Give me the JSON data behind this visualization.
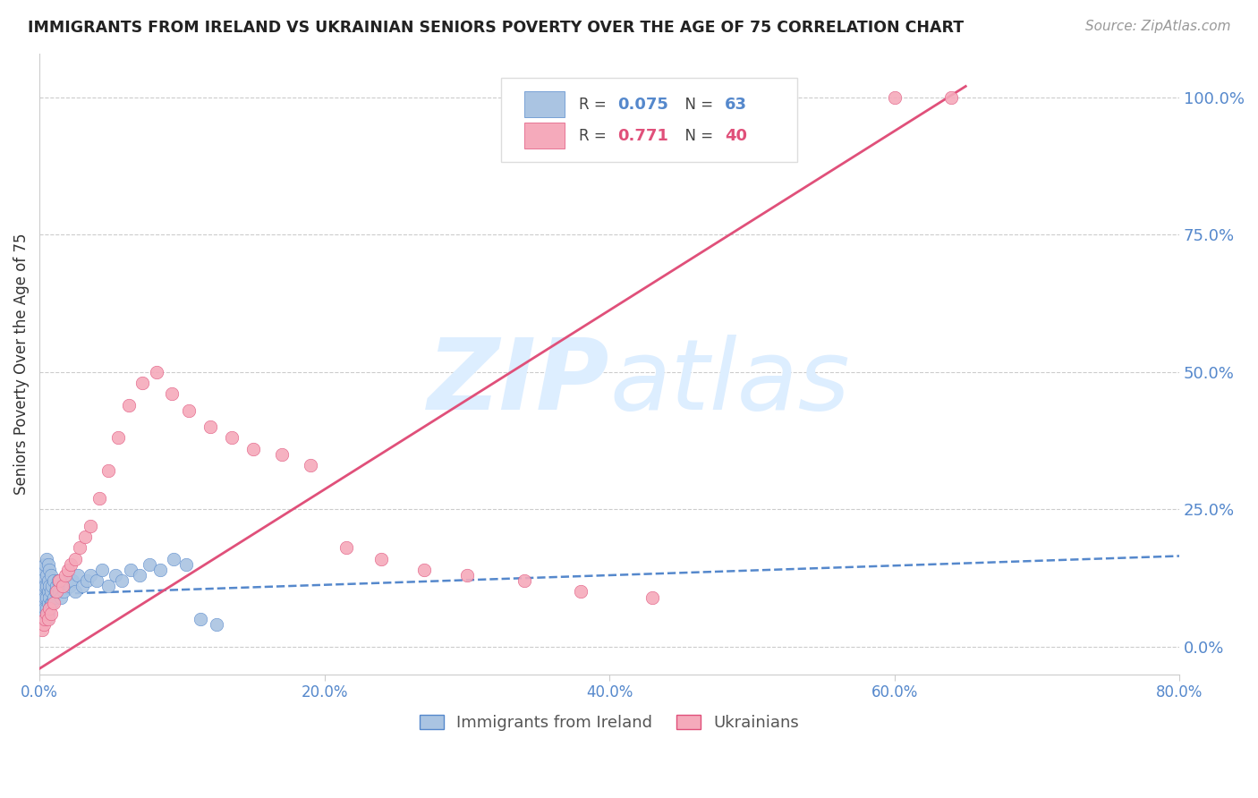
{
  "title": "IMMIGRANTS FROM IRELAND VS UKRAINIAN SENIORS POVERTY OVER THE AGE OF 75 CORRELATION CHART",
  "source": "Source: ZipAtlas.com",
  "ylabel": "Seniors Poverty Over the Age of 75",
  "xlim": [
    0.0,
    0.8
  ],
  "ylim": [
    -0.05,
    1.08
  ],
  "ireland_R": 0.075,
  "ireland_N": 63,
  "ukraine_R": 0.771,
  "ukraine_N": 40,
  "ireland_color": "#aac4e2",
  "ukraine_color": "#f5aabb",
  "ireland_line_color": "#5588cc",
  "ukraine_line_color": "#e0507a",
  "watermark_zip": "ZIP",
  "watermark_atlas": "atlas",
  "watermark_color": "#ddeeff",
  "background_color": "#ffffff",
  "ireland_x": [
    0.001,
    0.001,
    0.002,
    0.002,
    0.002,
    0.003,
    0.003,
    0.003,
    0.003,
    0.004,
    0.004,
    0.004,
    0.004,
    0.005,
    0.005,
    0.005,
    0.005,
    0.005,
    0.005,
    0.006,
    0.006,
    0.006,
    0.006,
    0.006,
    0.007,
    0.007,
    0.007,
    0.007,
    0.008,
    0.008,
    0.008,
    0.009,
    0.009,
    0.01,
    0.01,
    0.011,
    0.012,
    0.013,
    0.014,
    0.015,
    0.016,
    0.017,
    0.019,
    0.021,
    0.023,
    0.025,
    0.027,
    0.03,
    0.033,
    0.036,
    0.04,
    0.044,
    0.048,
    0.053,
    0.058,
    0.064,
    0.07,
    0.077,
    0.085,
    0.094,
    0.103,
    0.113,
    0.124
  ],
  "ireland_y": [
    0.07,
    0.11,
    0.05,
    0.09,
    0.13,
    0.06,
    0.08,
    0.1,
    0.14,
    0.07,
    0.09,
    0.11,
    0.15,
    0.05,
    0.07,
    0.09,
    0.11,
    0.13,
    0.16,
    0.06,
    0.08,
    0.1,
    0.12,
    0.15,
    0.07,
    0.09,
    0.11,
    0.14,
    0.08,
    0.1,
    0.13,
    0.08,
    0.11,
    0.09,
    0.12,
    0.1,
    0.11,
    0.12,
    0.1,
    0.09,
    0.11,
    0.1,
    0.12,
    0.11,
    0.12,
    0.1,
    0.13,
    0.11,
    0.12,
    0.13,
    0.12,
    0.14,
    0.11,
    0.13,
    0.12,
    0.14,
    0.13,
    0.15,
    0.14,
    0.16,
    0.15,
    0.05,
    0.04
  ],
  "ukraine_x": [
    0.002,
    0.003,
    0.004,
    0.005,
    0.006,
    0.007,
    0.008,
    0.01,
    0.012,
    0.014,
    0.016,
    0.018,
    0.02,
    0.022,
    0.025,
    0.028,
    0.032,
    0.036,
    0.042,
    0.048,
    0.055,
    0.063,
    0.072,
    0.082,
    0.093,
    0.105,
    0.12,
    0.135,
    0.15,
    0.17,
    0.19,
    0.215,
    0.24,
    0.27,
    0.3,
    0.34,
    0.38,
    0.43,
    0.6,
    0.64
  ],
  "ukraine_y": [
    0.03,
    0.04,
    0.05,
    0.06,
    0.05,
    0.07,
    0.06,
    0.08,
    0.1,
    0.12,
    0.11,
    0.13,
    0.14,
    0.15,
    0.16,
    0.18,
    0.2,
    0.22,
    0.27,
    0.32,
    0.38,
    0.44,
    0.48,
    0.5,
    0.46,
    0.43,
    0.4,
    0.38,
    0.36,
    0.35,
    0.33,
    0.18,
    0.16,
    0.14,
    0.13,
    0.12,
    0.1,
    0.09,
    1.0,
    1.0
  ],
  "ireland_trend_x": [
    0.0,
    0.8
  ],
  "ireland_trend_y": [
    0.095,
    0.165
  ],
  "ukraine_trend_x": [
    0.0,
    0.65
  ],
  "ukraine_trend_y": [
    -0.04,
    1.02
  ]
}
